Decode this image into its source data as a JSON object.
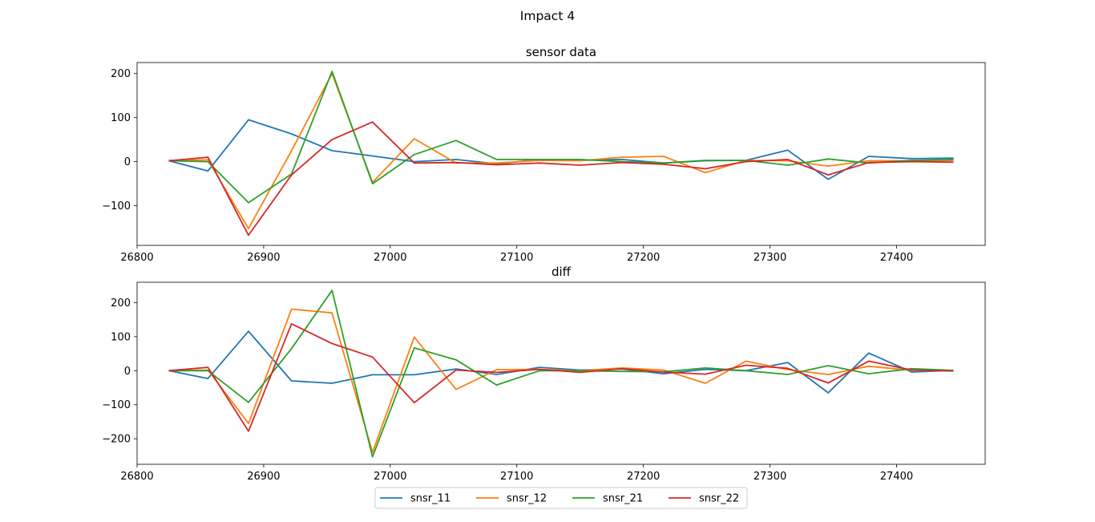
{
  "suptitle": "Impact 4",
  "colors": {
    "snsr_11": "#1f77b4",
    "snsr_12": "#ff7f0e",
    "snsr_21": "#2ca02c",
    "snsr_22": "#d62728"
  },
  "legend": {
    "placement": "bottom-center",
    "columns": 4,
    "entries": [
      "snsr_11",
      "snsr_12",
      "snsr_21",
      "snsr_22"
    ]
  },
  "chart_data": [
    {
      "type": "line",
      "title": "sensor data",
      "xlabel": "",
      "ylabel": "",
      "xlim": [
        26800,
        27470
      ],
      "ylim": [
        -190,
        225
      ],
      "xticks": [
        26800,
        26900,
        27000,
        27100,
        27200,
        27300,
        27400
      ],
      "yticks": [
        -100,
        0,
        100,
        200
      ],
      "x": [
        26825,
        26856,
        26888,
        26922,
        26954,
        26986,
        27019,
        27052,
        27084,
        27118,
        27150,
        27183,
        27216,
        27249,
        27281,
        27314,
        27346,
        27378,
        27412,
        27445
      ],
      "series": [
        {
          "name": "snsr_11",
          "values": [
            2,
            -21,
            95,
            63,
            25,
            13,
            0,
            5,
            -5,
            5,
            3,
            5,
            -3,
            2,
            3,
            26,
            -40,
            12,
            7,
            8
          ]
        },
        {
          "name": "snsr_12",
          "values": [
            3,
            4,
            -152,
            25,
            200,
            -47,
            52,
            -3,
            -3,
            3,
            2,
            10,
            12,
            -25,
            3,
            2,
            -10,
            2,
            2,
            3
          ]
        },
        {
          "name": "snsr_21",
          "values": [
            2,
            0,
            -93,
            -28,
            205,
            -50,
            16,
            48,
            5,
            5,
            5,
            0,
            -3,
            3,
            3,
            -8,
            6,
            -3,
            3,
            5
          ]
        },
        {
          "name": "snsr_22",
          "values": [
            2,
            10,
            -167,
            -30,
            50,
            90,
            -3,
            -2,
            -7,
            -3,
            -8,
            -2,
            -6,
            -16,
            0,
            5,
            -30,
            -2,
            0,
            -1
          ]
        }
      ]
    },
    {
      "type": "line",
      "title": "diff",
      "xlabel": "",
      "ylabel": "",
      "xlim": [
        26800,
        27470
      ],
      "ylim": [
        -275,
        260
      ],
      "xticks": [
        26800,
        26900,
        27000,
        27100,
        27200,
        27300,
        27400
      ],
      "yticks": [
        -200,
        -100,
        0,
        100,
        200
      ],
      "x": [
        26825,
        26856,
        26888,
        26922,
        26954,
        26986,
        27019,
        27052,
        27084,
        27118,
        27150,
        27183,
        27216,
        27249,
        27281,
        27314,
        27346,
        27378,
        27412,
        27445
      ],
      "series": [
        {
          "name": "snsr_11",
          "values": [
            0,
            -23,
            116,
            -30,
            -37,
            -12,
            -12,
            5,
            -11,
            10,
            2,
            5,
            -9,
            4,
            0,
            24,
            -65,
            52,
            -4,
            1
          ]
        },
        {
          "name": "snsr_12",
          "values": [
            0,
            2,
            -155,
            181,
            170,
            -240,
            99,
            -55,
            3,
            4,
            0,
            8,
            2,
            -37,
            28,
            3,
            -11,
            13,
            1,
            1
          ]
        },
        {
          "name": "snsr_21",
          "values": [
            0,
            0,
            -93,
            65,
            236,
            -253,
            67,
            32,
            -42,
            0,
            0,
            -2,
            -3,
            8,
            0,
            -11,
            15,
            -9,
            6,
            1
          ]
        },
        {
          "name": "snsr_22",
          "values": [
            0,
            10,
            -178,
            138,
            80,
            40,
            -94,
            2,
            -5,
            4,
            -5,
            6,
            -4,
            -10,
            16,
            7,
            -36,
            28,
            2,
            -1
          ]
        }
      ]
    }
  ]
}
